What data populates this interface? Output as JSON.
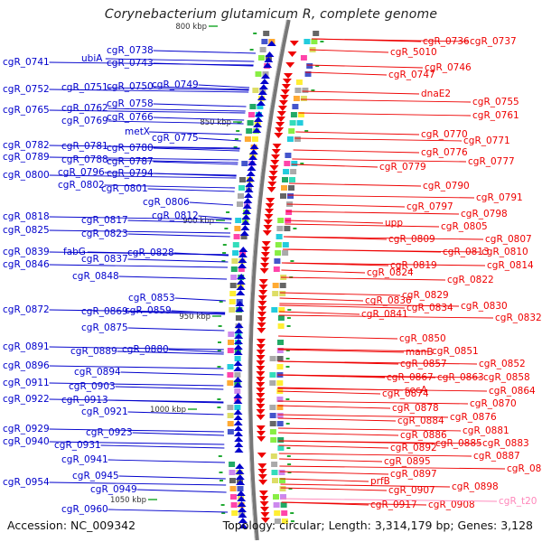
{
  "title": "Corynebacterium glutamicum R, complete genome",
  "footer": {
    "accession": "Accession: NC_009342",
    "topology": "Topology: circular; Length: 3,314,179 bp; Genes: 3,128"
  },
  "colors": {
    "forward": "#0000cc",
    "reverse": "#ee0000",
    "rna": "#ff88bb",
    "backbone": "#777777"
  },
  "scale_labels": [
    {
      "text": "800 kbp",
      "position_kbp": 800
    },
    {
      "text": "850 kbp",
      "position_kbp": 850
    },
    {
      "text": "900 kbp",
      "position_kbp": 900
    },
    {
      "text": "950 kbp",
      "position_kbp": 950
    },
    {
      "text": "1000 kbp",
      "position_kbp": 1000
    },
    {
      "text": "1050 kbp",
      "position_kbp": 1050
    }
  ],
  "left_labels": [
    "cgR_0738",
    "cgR_0741",
    "ubiA",
    "cgR_0743",
    "cgR_0749",
    "cgR_0752",
    "cgR_0751",
    "cgR_0750",
    "cgR_0758",
    "cgR_0765",
    "cgR_0762",
    "cgR_0766",
    "cgR_0769",
    "metX",
    "cgR_0775",
    "cgR_0782",
    "cgR_0781",
    "cgR_0780",
    "cgR_0789",
    "cgR_0788",
    "cgR_0787",
    "cgR_0800",
    "cgR_0796",
    "cgR_0794",
    "cgR_0802",
    "cgR_0801",
    "cgR_0806",
    "cgR_0818",
    "cgR_0812",
    "cgR_0817",
    "cgR_0825",
    "cgR_0823",
    "cgR_0839",
    "fabG",
    "cgR_0828",
    "cgR_0846",
    "cgR_0837",
    "cgR_0848",
    "cgR_0853",
    "cgR_0872",
    "cgR_0869",
    "cgR_0859",
    "cgR_0875",
    "cgR_0891",
    "cgR_0880",
    "cgR_0889",
    "cgR_0896",
    "cgR_0894",
    "cgR_0911",
    "cgR_0903",
    "cgR_0922",
    "cgR_0913",
    "cgR_0921",
    "cgR_0929",
    "cgR_0923",
    "cgR_0940",
    "cgR_0931",
    "cgR_0941",
    "cgR_0945",
    "cgR_0954",
    "cgR_0949",
    "cgR_0960"
  ],
  "right_labels": [
    "cgR_0736",
    "cgR_0737",
    "cgR_5010",
    "cgR_0746",
    "cgR_0747",
    "dnaE2",
    "cgR_0755",
    "cgR_0761",
    "cgR_0770",
    "cgR_0771",
    "cgR_0776",
    "cgR_0777",
    "cgR_0779",
    "cgR_0790",
    "cgR_0791",
    "cgR_0797",
    "cgR_0798",
    "upp",
    "cgR_0805",
    "cgR_0807",
    "cgR_0809",
    "cgR_0813",
    "cgR_0810",
    "cgR_0819",
    "cgR_0814",
    "cgR_0824",
    "cgR_0822",
    "cgR_0829",
    "cgR_0836",
    "cgR_0830",
    "cgR_0834",
    "cgR_0841",
    "cgR_0832",
    "cgR_0850",
    "manB",
    "cgR_0851",
    "cgR_0857",
    "cgR_0852",
    "cgR_0867",
    "cgR_0863",
    "cgR_0858",
    "secA",
    "cgR_0874",
    "cgR_0864",
    "cgR_0870",
    "cgR_0878",
    "cgR_0876",
    "cgR_0884",
    "cgR_0881",
    "cgR_0886",
    "cgR_0885",
    "cgR_0883",
    "cgR_0892",
    "cgR_0887",
    "cgR_0895",
    "cgR_0888",
    "cgR_0897",
    "prfB",
    "cgR_0898",
    "cgR_0907",
    "cgR_0917",
    "cgR_0908",
    "cgR_t20"
  ]
}
